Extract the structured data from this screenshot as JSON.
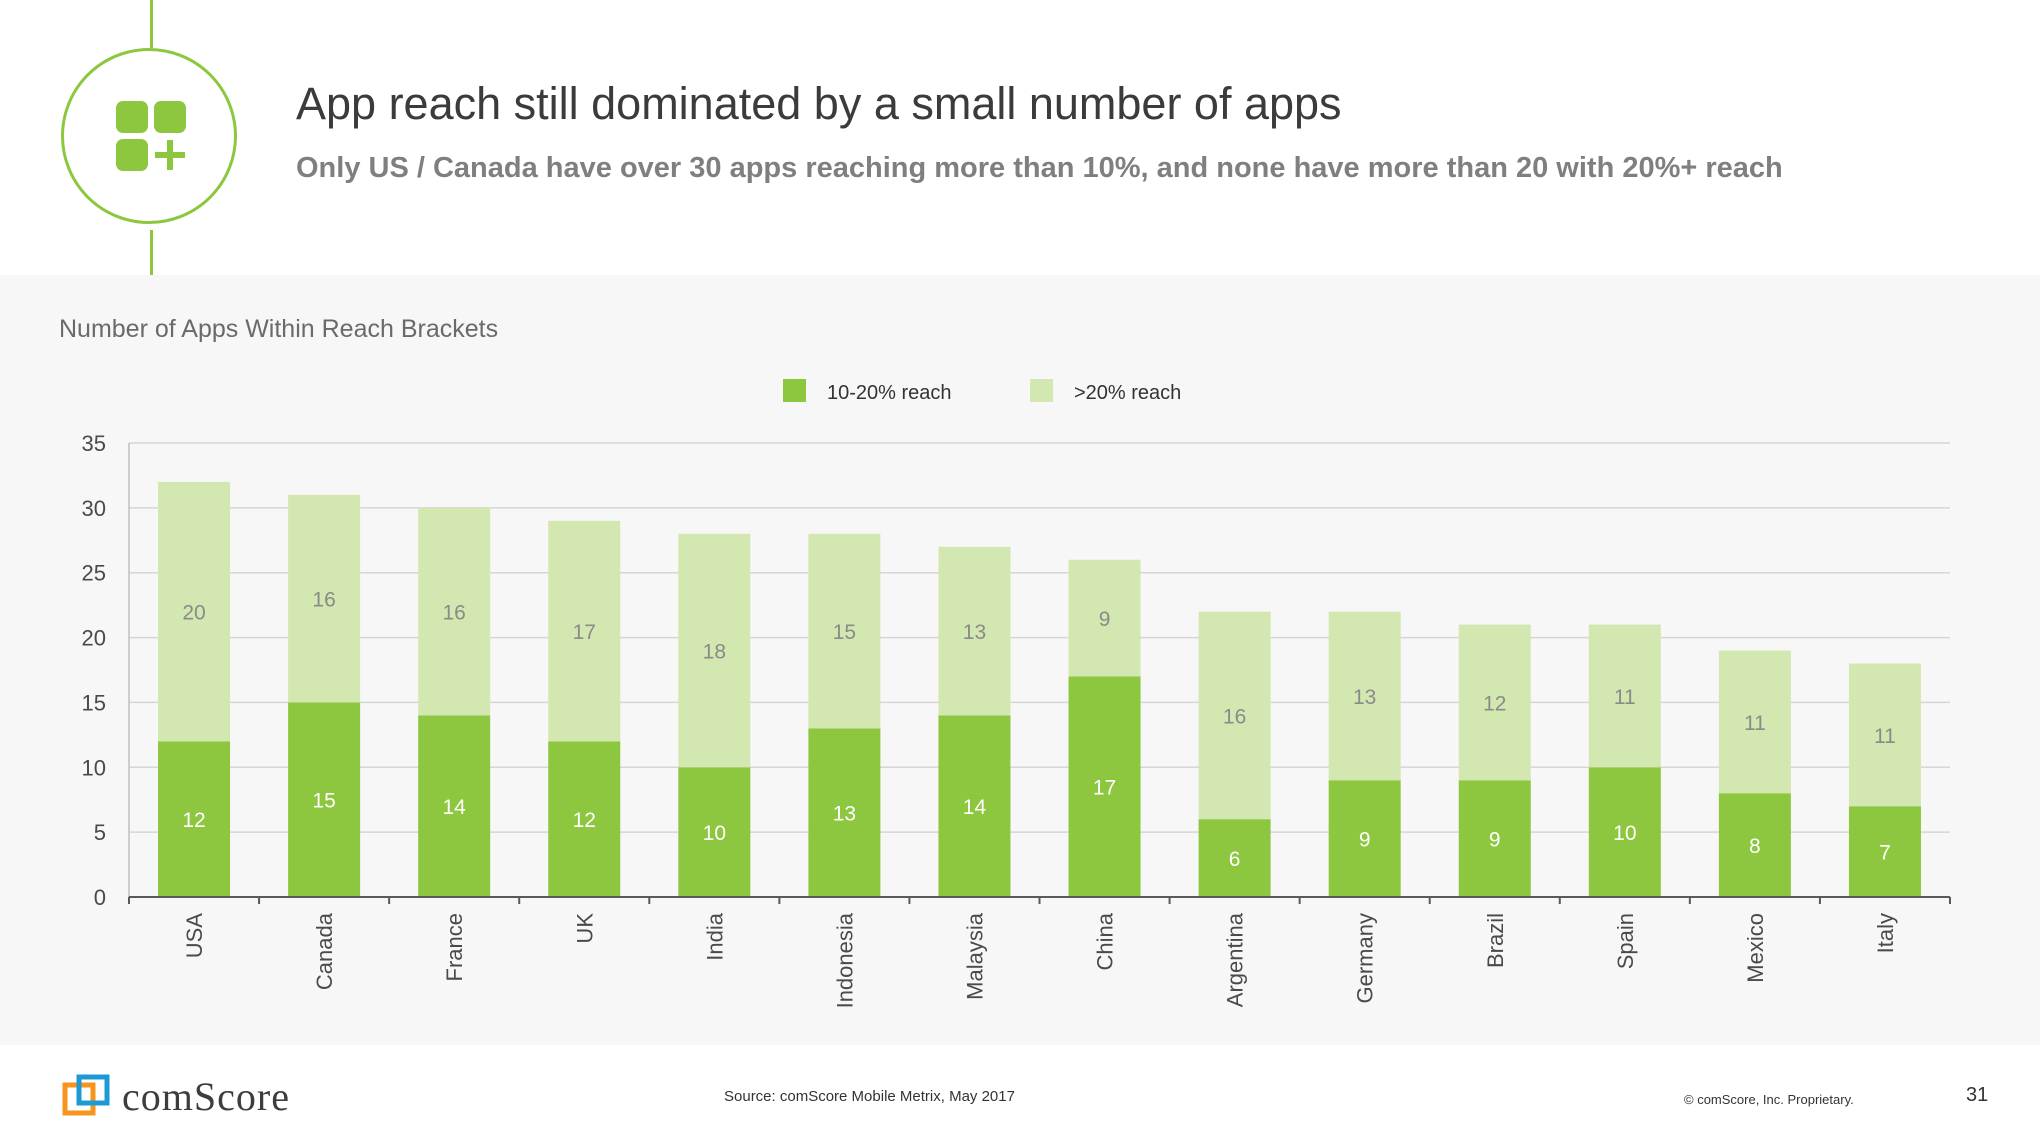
{
  "header": {
    "title": "App reach still dominated by a small number of apps",
    "subtitle": "Only US / Canada have over 30 apps reaching more than 10%, and none have more than 20 with 20%+ reach"
  },
  "chart_panel": {
    "title": "Number of Apps Within Reach Brackets"
  },
  "chart_data": {
    "type": "bar",
    "stacked": true,
    "title": "Number of Apps Within Reach Brackets",
    "categories": [
      "USA",
      "Canada",
      "France",
      "UK",
      "India",
      "Indonesia",
      "Malaysia",
      "China",
      "Argentina",
      "Germany",
      "Brazil",
      "Spain",
      "Mexico",
      "Italy"
    ],
    "series": [
      {
        "name": "10-20% reach",
        "color": "#8dc63f",
        "label_color": "#ffffff",
        "values": [
          12,
          15,
          14,
          12,
          10,
          13,
          14,
          17,
          6,
          9,
          9,
          10,
          8,
          7
        ]
      },
      {
        "name": ">20% reach",
        "color": "#d3e8b1",
        "label_color": "#8a8a8a",
        "values": [
          20,
          16,
          16,
          17,
          18,
          15,
          13,
          9,
          16,
          13,
          12,
          11,
          11,
          11
        ]
      }
    ],
    "ylim": [
      0,
      35
    ],
    "yticks": [
      0,
      5,
      10,
      15,
      20,
      25,
      30,
      35
    ],
    "xlabel": "",
    "ylabel": "",
    "grid": true,
    "legend_position": "top-center"
  },
  "footer": {
    "brand": "comScore",
    "source": "Source: comScore Mobile Metrix, May 2017",
    "copyright": "© comScore, Inc. Proprietary.",
    "page_number": "31"
  },
  "colors": {
    "accent": "#8dc63f",
    "accent_light": "#d3e8b1",
    "brand_orange": "#f7941d",
    "brand_blue": "#1b9ad6"
  }
}
